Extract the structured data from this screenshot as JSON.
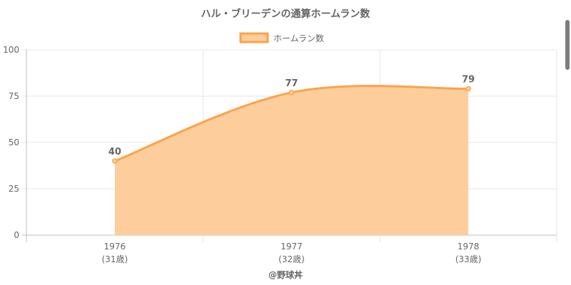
{
  "chart_data": {
    "type": "area",
    "title": "ハル・ブリーデンの通算ホームラン数",
    "categories": [
      "1976",
      "1977",
      "1978"
    ],
    "sublabels": [
      "(31歳)",
      "(32歳)",
      "(33歳)"
    ],
    "series": [
      {
        "name": "ホームラン数",
        "values": [
          40,
          77,
          79
        ],
        "color": "#fba34a",
        "fill": "#fecd9c"
      }
    ],
    "data_labels": [
      "40",
      "77",
      "79"
    ],
    "ylim": [
      0,
      100
    ],
    "yticks": [
      "0",
      "25",
      "50",
      "75",
      "100"
    ],
    "grid": true,
    "legend_position": "top-center"
  },
  "footer": {
    "credit": "@野球丼"
  },
  "colors": {
    "text": "#666666",
    "grid": "#e6e6e6",
    "axis": "#bdbdbd"
  }
}
